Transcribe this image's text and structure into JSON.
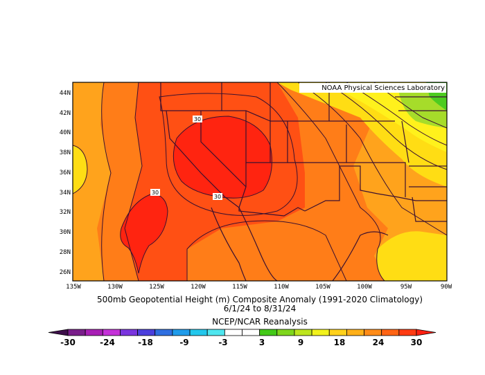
{
  "map": {
    "credit": "NOAA Physical Sciences Laboratory",
    "title_line1": "500mb Geopotential Height (m) Composite Anomaly (1991-2020 Climatology)",
    "title_line2": "6/1/24  to 8/31/24",
    "source": "NCEP/NCAR Reanalysis",
    "lat_ticks": [
      "44N",
      "42N",
      "40N",
      "38N",
      "36N",
      "34N",
      "32N",
      "30N",
      "28N",
      "26N"
    ],
    "lon_ticks": [
      "135W",
      "130W",
      "125W",
      "120W",
      "115W",
      "110W",
      "105W",
      "100W",
      "95W",
      "90W"
    ],
    "contour_labels": [
      "30",
      "30",
      "30"
    ],
    "colorbar": {
      "labels": [
        "-30",
        "-24",
        "-18",
        "-9",
        "-3",
        "3",
        "9",
        "18",
        "24",
        "30"
      ],
      "colors": [
        "#3e0f4b",
        "#7a1e8a",
        "#a81fb5",
        "#c431d8",
        "#7a35de",
        "#4b3fdc",
        "#2f6fe0",
        "#1f9bea",
        "#23c7ec",
        "#4fe6ef",
        "#ffffff",
        "#ffffff",
        "#43c918",
        "#7fd61c",
        "#bde51e",
        "#f2f21c",
        "#ffd11b",
        "#ffb019",
        "#ff8b17",
        "#ff6414",
        "#ff3b12",
        "#ff1f10"
      ]
    }
  },
  "colors": {
    "orange_light": "#ffa31c",
    "orange_mid": "#ff7d18",
    "orange_dark": "#ff5014",
    "red": "#ff2410",
    "yellow": "#ffdd14",
    "yellow_light": "#fff11c",
    "green": "#a6dc2a",
    "green_dark": "#4ccc20",
    "border": "#3a1030"
  }
}
